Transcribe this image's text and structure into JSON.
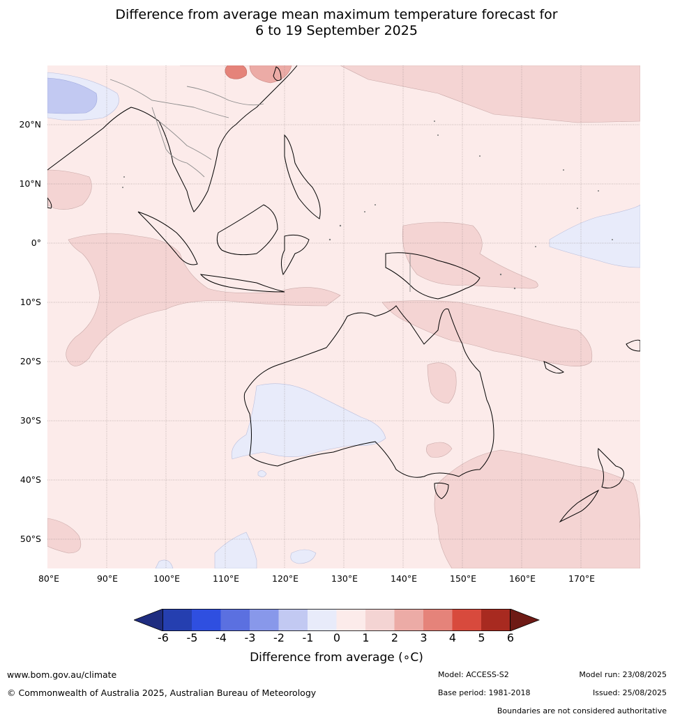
{
  "title": {
    "line1": "Difference from average mean maximum temperature forecast for",
    "line2": "6 to 19 September 2025"
  },
  "map": {
    "lon_range": [
      80,
      180
    ],
    "lat_range": [
      -55,
      30
    ],
    "lat_labels": [
      "20°N",
      "10°N",
      "0°",
      "10°S",
      "20°S",
      "30°S",
      "40°S",
      "50°S"
    ],
    "lon_labels": [
      "80°E",
      "90°E",
      "100°E",
      "110°E",
      "120°E",
      "130°E",
      "140°E",
      "150°E",
      "160°E",
      "170°E"
    ],
    "background_color": "#fcebea"
  },
  "colorbar": {
    "ticks": [
      "-6",
      "-5",
      "-4",
      "-3",
      "-2",
      "-1",
      "0",
      "1",
      "2",
      "3",
      "4",
      "5",
      "6"
    ],
    "colors": [
      "#1f2d80",
      "#253fb0",
      "#2f4fe0",
      "#5b70e0",
      "#8898ea",
      "#c2c9f2",
      "#e8ebfa",
      "#fcebea",
      "#f4d4d3",
      "#ecaba6",
      "#e5837a",
      "#d84a3d",
      "#a82a20",
      "#6e1a15"
    ],
    "label": "Difference from average (∘C)"
  },
  "footer": {
    "website": "www.bom.gov.au/climate",
    "copyright": "© Commonwealth of Australia 2025, Australian Bureau of Meteorology",
    "model": "Model: ACCESS-S2",
    "base_period": "Base period: 1981-2018",
    "model_run": "Model run: 23/08/2025",
    "issued": "Issued: 25/08/2025",
    "disclaimer": "Boundaries are not considered authoritative"
  }
}
